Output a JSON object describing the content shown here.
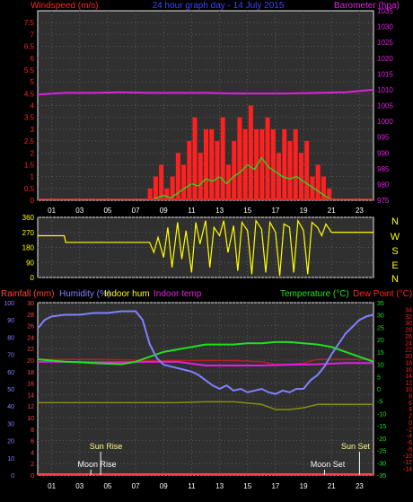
{
  "header": {
    "left_label": "Windspeed (m/s)",
    "title": "24 hour graph day - 14 July 2015",
    "right_label": "Barometer (hpa)"
  },
  "panel2": {
    "compass": [
      "N",
      "W",
      "S",
      "E",
      "N"
    ]
  },
  "panel3": {
    "labels": {
      "rainfall": "Rainfall (mm)",
      "humidity": "Humidity (%)",
      "indoor_hum": "Indoor hum",
      "indoor_temp": "Indoor temp",
      "temperature": "Temperature (°C)",
      "dew_point": "Dew Point (°C)"
    },
    "astro": {
      "sun_rise": "Sun Rise",
      "moon_rise": "Moon Rise",
      "moon_set": "Moon Set",
      "sun_set": "Sun Set"
    }
  },
  "colors": {
    "wind": "#ff2020",
    "gust": "#20e020",
    "barometer": "#e020e0",
    "direction": "#ffff00",
    "humidity": "#8080ff",
    "indoor_hum": "#ffff00",
    "indoor_temp": "#e020e0",
    "temperature": "#20e020",
    "dew_point": "#ff2020",
    "rainfall": "#ff4040",
    "title": "#4040ff",
    "axis_right": "#e020e0"
  },
  "chart_data": [
    {
      "type": "bar",
      "name": "windspeed_barometer",
      "x_ticks": [
        "01",
        "03",
        "05",
        "07",
        "09",
        "11",
        "13",
        "15",
        "17",
        "19",
        "21",
        "23"
      ],
      "ylim_left": [
        0,
        8
      ],
      "yticks_left": [
        "0",
        "0.5",
        "1",
        "1.5",
        "2",
        "2.5",
        "3",
        "3.5",
        "4",
        "4.5",
        "5",
        "5.5",
        "6",
        "6.5",
        "7",
        "7.5"
      ],
      "ylim_right": [
        975,
        1035
      ],
      "yticks_right": [
        "975",
        "980",
        "985",
        "990",
        "995",
        "1000",
        "1005",
        "1010",
        "1015",
        "1020",
        "1025",
        "1030",
        "1035"
      ],
      "series": [
        {
          "role": "wind_gust",
          "x": [
            8.0,
            8.4,
            8.8,
            9.2,
            9.6,
            10.0,
            10.4,
            10.8,
            11.2,
            11.6,
            12.0,
            12.4,
            12.8,
            13.2,
            13.6,
            14.0,
            14.4,
            14.8,
            15.2,
            15.6,
            16.0,
            16.4,
            16.8,
            17.2,
            17.6,
            18.0,
            18.4,
            18.8,
            19.2,
            19.6,
            20.0,
            20.4,
            20.8
          ],
          "values": [
            0.5,
            1.0,
            1.5,
            0.5,
            1.0,
            2.0,
            1.5,
            2.5,
            3.5,
            2.0,
            3.0,
            3.0,
            2.5,
            3.5,
            1.5,
            2.5,
            3.5,
            3.0,
            4.0,
            3.0,
            3.0,
            3.5,
            3.0,
            2.0,
            3.0,
            2.5,
            3.0,
            2.0,
            2.5,
            1.0,
            1.5,
            1.0,
            0.5
          ]
        },
        {
          "role": "wind_speed",
          "x": [
            8.0,
            8.5,
            9.0,
            9.5,
            10.0,
            10.5,
            11.0,
            11.5,
            12.0,
            12.5,
            13.0,
            13.5,
            14.0,
            14.5,
            15.0,
            15.5,
            16.0,
            16.5,
            17.0,
            17.5,
            18.0,
            18.5,
            19.0,
            19.5,
            20.0,
            20.5,
            21.0
          ],
          "values": [
            0.0,
            0.1,
            0.2,
            0.1,
            0.3,
            0.5,
            0.7,
            0.6,
            0.9,
            0.8,
            1.0,
            0.7,
            1.0,
            1.2,
            1.5,
            1.3,
            1.8,
            1.4,
            1.2,
            1.0,
            0.9,
            1.0,
            0.8,
            0.6,
            0.4,
            0.2,
            0.0
          ]
        },
        {
          "role": "barometer",
          "x": [
            0,
            2,
            4,
            6,
            8,
            10,
            12,
            14,
            16,
            18,
            20,
            22,
            24
          ],
          "values": [
            1008.5,
            1009.0,
            1009.0,
            1009.2,
            1009.0,
            1009.0,
            1009.0,
            1008.8,
            1008.8,
            1008.8,
            1009.0,
            1009.2,
            1010.0
          ]
        }
      ],
      "xlim": [
        0,
        24
      ],
      "grid": true
    },
    {
      "type": "scatter",
      "name": "wind_direction",
      "x_ticks": [
        "01",
        "03",
        "05",
        "07",
        "09",
        "11",
        "13",
        "15",
        "17",
        "19",
        "21",
        "23"
      ],
      "ylim": [
        0,
        360
      ],
      "yticks": [
        "0",
        "90",
        "180",
        "270",
        "360"
      ],
      "xlim": [
        0,
        24
      ],
      "series": [
        {
          "role": "direction",
          "x": [
            0,
            1.9,
            2.0,
            8.0,
            8.3,
            8.6,
            9.0,
            9.3,
            9.6,
            10.0,
            10.3,
            10.6,
            11.0,
            11.3,
            11.6,
            12.0,
            12.3,
            12.6,
            13.0,
            13.3,
            13.6,
            14.0,
            14.3,
            14.6,
            15.0,
            15.3,
            15.6,
            16.0,
            16.3,
            16.6,
            17.0,
            17.3,
            17.6,
            18.0,
            18.3,
            18.6,
            19.0,
            19.3,
            19.6,
            20.0,
            20.3,
            20.6,
            21.0,
            24.0
          ],
          "values": [
            250,
            250,
            210,
            210,
            150,
            240,
            120,
            300,
            60,
            330,
            110,
            280,
            30,
            330,
            200,
            340,
            60,
            300,
            250,
            340,
            150,
            310,
            40,
            330,
            280,
            20,
            340,
            290,
            30,
            330,
            270,
            10,
            320,
            300,
            30,
            340,
            280,
            20,
            330,
            300,
            250,
            320,
            270,
            270
          ]
        }
      ],
      "grid": true
    },
    {
      "type": "line",
      "name": "temperature_humidity",
      "x_ticks": [
        "01",
        "03",
        "05",
        "07",
        "09",
        "11",
        "13",
        "15",
        "17",
        "19",
        "21",
        "23"
      ],
      "xlim": [
        0,
        24
      ],
      "ylim_left": [
        0,
        100
      ],
      "yticks_left_humidity": [
        "0",
        "10",
        "20",
        "30",
        "40",
        "50",
        "60",
        "70",
        "80",
        "90",
        "100"
      ],
      "yticks_left_rain": [
        "0",
        "2",
        "4",
        "6",
        "8",
        "10",
        "12",
        "14",
        "16",
        "18",
        "20",
        "22",
        "24",
        "26",
        "28",
        "30"
      ],
      "ylim_temperature": [
        -35,
        35
      ],
      "yticks_temperature": [
        "35",
        "30",
        "25",
        "20",
        "15",
        "10",
        "5",
        "0",
        "-5",
        "-10",
        "-15",
        "-20",
        "-25",
        "-30",
        "-35"
      ],
      "ylim_dew_point": [
        -16,
        36
      ],
      "yticks_dew_point": [
        "34",
        "32",
        "30",
        "28",
        "26",
        "24",
        "22",
        "20",
        "18",
        "16",
        "14",
        "12",
        "10",
        "8",
        "6",
        "4",
        "2",
        "0",
        "-2",
        "-4",
        "-6",
        "-8",
        "-10",
        "-12",
        "-14",
        "-16"
      ],
      "series": [
        {
          "role": "humidity",
          "x": [
            0,
            0.5,
            1,
            2,
            3,
            4,
            5,
            6,
            7,
            7.5,
            8,
            8.5,
            9,
            9.5,
            10,
            10.5,
            11,
            11.5,
            12,
            12.5,
            13,
            13.5,
            14,
            14.5,
            15,
            15.5,
            16,
            16.5,
            17,
            17.5,
            18,
            18.5,
            19,
            19.5,
            20,
            20.5,
            21,
            21.5,
            22,
            22.5,
            23,
            23.5,
            24
          ],
          "values": [
            85,
            90,
            92,
            93,
            93,
            94,
            94,
            95,
            95,
            90,
            76,
            68,
            64,
            63,
            62,
            61,
            60,
            58,
            55,
            52,
            50,
            52,
            49,
            50,
            48,
            49,
            50,
            48,
            47,
            49,
            48,
            50,
            50,
            55,
            58,
            63,
            70,
            76,
            82,
            86,
            90,
            92,
            93
          ]
        },
        {
          "role": "temperature",
          "x": [
            0,
            1,
            2,
            3,
            4,
            5,
            6,
            7,
            8,
            9,
            10,
            11,
            12,
            13,
            14,
            15,
            16,
            17,
            18,
            19,
            20,
            21,
            22,
            23,
            24
          ],
          "values": [
            12,
            11.5,
            11,
            10.8,
            10.5,
            10.2,
            10.0,
            11,
            13,
            15,
            16,
            17,
            18,
            18,
            18,
            18.5,
            18.5,
            19,
            19,
            18.5,
            18,
            17,
            15,
            13,
            11
          ]
        },
        {
          "role": "indoor_temp",
          "x": [
            0,
            2,
            4,
            6,
            8,
            10,
            12,
            14,
            16,
            18,
            20,
            22,
            24
          ],
          "values": [
            11,
            11,
            10.8,
            10.8,
            11,
            11,
            9.5,
            9.5,
            9.5,
            9.8,
            10,
            10.5,
            10.5
          ]
        },
        {
          "role": "dew_point",
          "x": [
            0,
            2,
            4,
            6,
            8,
            10,
            12,
            14,
            16,
            17,
            18,
            19,
            20,
            22,
            24
          ],
          "values": [
            12,
            12,
            12,
            11.8,
            11.5,
            11.5,
            11.5,
            11.5,
            11,
            10,
            10,
            10.5,
            12,
            12,
            12
          ]
        },
        {
          "role": "indoor_hum",
          "x": [
            0,
            2,
            4,
            6,
            8,
            10,
            12,
            14,
            16,
            17,
            18,
            19,
            20,
            22,
            24
          ],
          "values": [
            42,
            42,
            42,
            42,
            42,
            42,
            42.5,
            42.5,
            41,
            38,
            38,
            39,
            41,
            41,
            41
          ]
        },
        {
          "role": "rainfall",
          "x": [
            0,
            24
          ],
          "values": [
            0,
            0
          ]
        }
      ],
      "astro_hours": {
        "sun_rise": 4.5,
        "moon_rise": 3.8,
        "moon_set": 20.5,
        "sun_set": 23.0
      },
      "grid": true
    }
  ]
}
